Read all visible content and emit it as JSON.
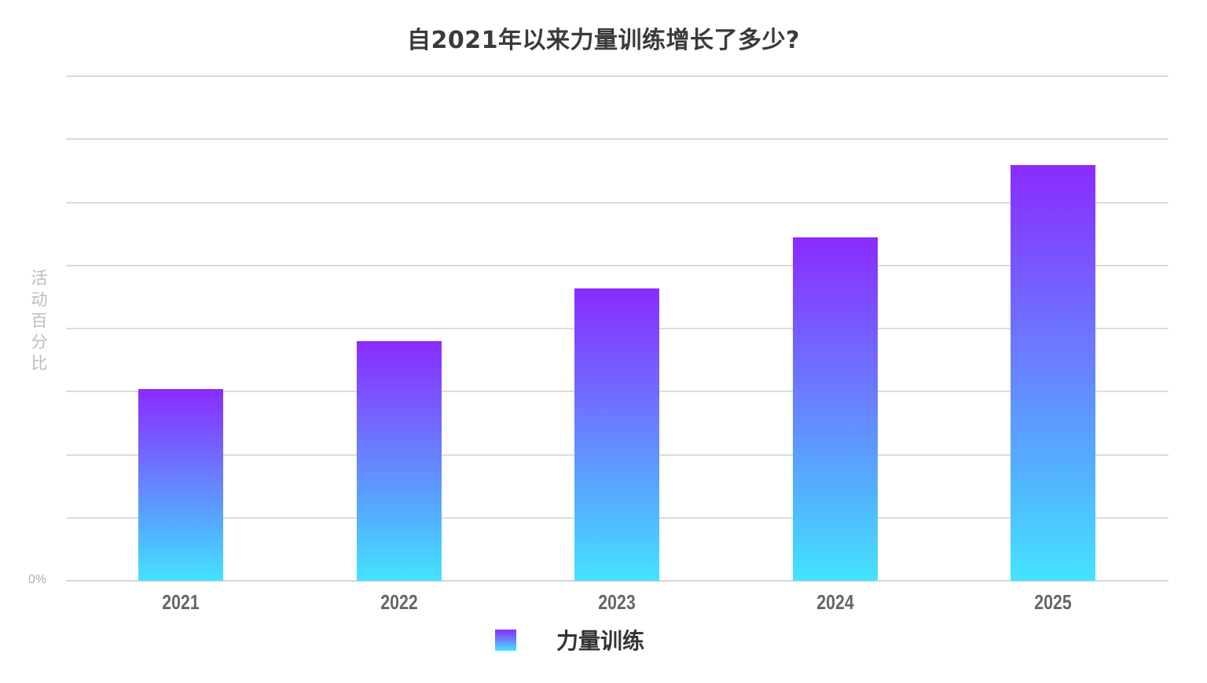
{
  "chart": {
    "title": "自2021年以来力量训练增长了多少?",
    "ylabel": "活动百分比",
    "ytick_zero": "0%",
    "legend": {
      "label": "力量训练",
      "gradient_top": "#8A2BFF",
      "gradient_bottom": "#45E3FF"
    },
    "xticks": [
      "2021",
      "2022",
      "2023",
      "2024",
      "2025"
    ]
  },
  "chart_data": {
    "type": "bar",
    "title": "自2021年以来力量训练增长了多少?",
    "xlabel": "",
    "ylabel": "活动百分比",
    "categories": [
      "2021",
      "2022",
      "2023",
      "2024",
      "2025"
    ],
    "series": [
      {
        "name": "力量训练",
        "values": [
          3.04,
          3.79,
          4.63,
          5.44,
          6.58
        ],
        "color_gradient": [
          "#8A2BFF",
          "#45E3FF"
        ]
      }
    ],
    "value_units": "gridline units (only the 0% tick is labeled; 8 equally spaced gridlines above baseline)",
    "ylim": [
      0,
      8
    ],
    "yticks_labeled": [
      "0%"
    ],
    "gridlines": 8,
    "grid": true,
    "legend_position": "bottom-center"
  }
}
